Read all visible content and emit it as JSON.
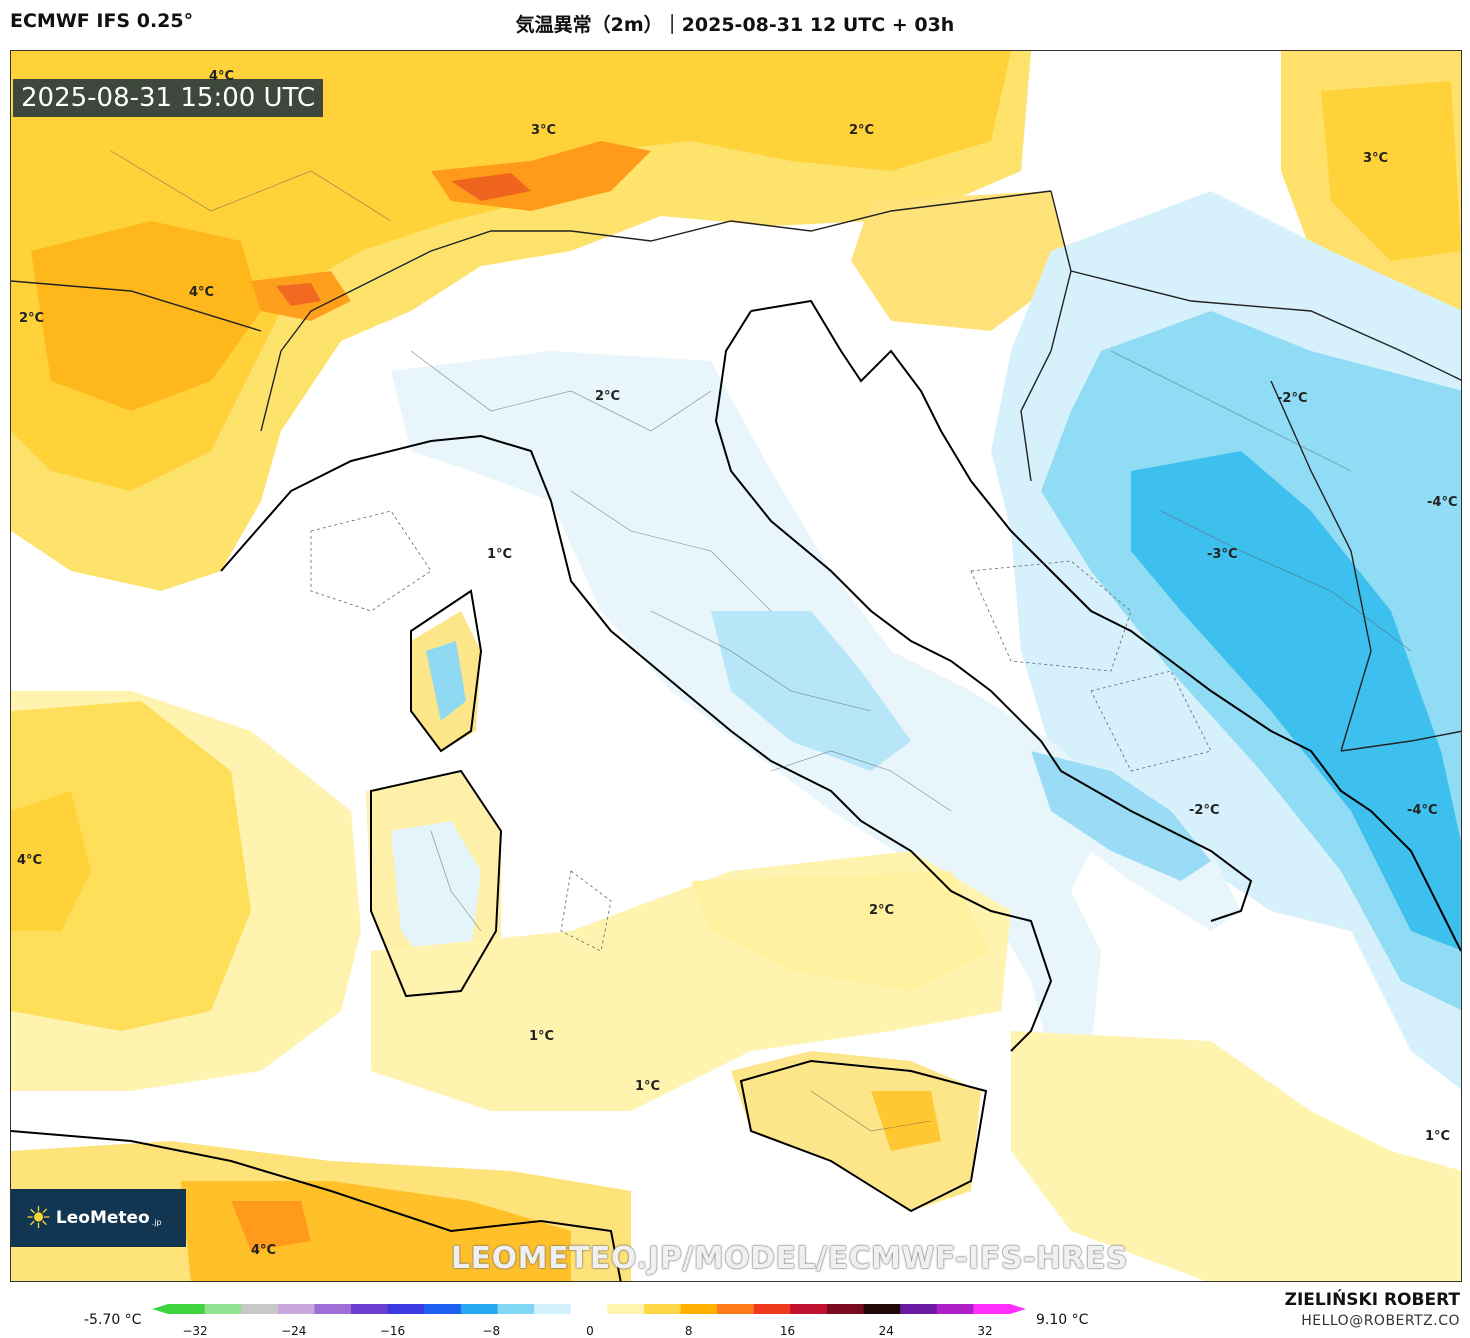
{
  "header": {
    "model": "ECMWF IFS 0.25°",
    "title": "気温異常（2m）｜2025-08-31 12 UTC + 03h"
  },
  "map": {
    "valid_time": "2025-08-31 15:00 UTC",
    "watermark": "LEOMETEO.JP/MODEL/ECMWF-IFS-HRES",
    "logo": {
      "name": "LeoMeteo",
      "suffix": ".jp",
      "icon": "sun-icon"
    },
    "contour_labels": [
      {
        "id": "nw-4c-top",
        "text": "4°C"
      },
      {
        "id": "alps-3c",
        "text": "3°C"
      },
      {
        "id": "austria-2c",
        "text": "2°C"
      },
      {
        "id": "hungary-3c",
        "text": "3°C"
      },
      {
        "id": "france-4c",
        "text": "4°C"
      },
      {
        "id": "france-2c",
        "text": "2°C"
      },
      {
        "id": "po-valley-2c",
        "text": "2°C"
      },
      {
        "id": "balkans-neg2c",
        "text": "-2°C"
      },
      {
        "id": "balkans-neg4c-east",
        "text": "-4°C"
      },
      {
        "id": "ligurian-1c",
        "text": "1°C"
      },
      {
        "id": "dalmatia-neg3c",
        "text": "-3°C"
      },
      {
        "id": "adriatic-neg2c",
        "text": "-2°C"
      },
      {
        "id": "albania-neg4c",
        "text": "-4°C"
      },
      {
        "id": "med-west-4c",
        "text": "4°C"
      },
      {
        "id": "tyrrhenian-2c",
        "text": "2°C"
      },
      {
        "id": "sardinia-south-1c",
        "text": "1°C"
      },
      {
        "id": "sicily-west-1c",
        "text": "1°C"
      },
      {
        "id": "ionian-1c",
        "text": "1°C"
      },
      {
        "id": "africa-4c",
        "text": "4°C"
      }
    ]
  },
  "colorbar": {
    "min_label": "-5.70 °C",
    "max_label": "9.10 °C",
    "ticks": [
      "−32",
      "−24",
      "−16",
      "−8",
      "0",
      "8",
      "16",
      "24",
      "32"
    ],
    "colors": [
      "#3fd33f",
      "#8fe28f",
      "#c8c8c8",
      "#c9a8e0",
      "#9f6fd8",
      "#6a3fd0",
      "#3a3ae0",
      "#2060f0",
      "#25a8f0",
      "#7fd6f5",
      "#d2f0fa",
      "#ffffff",
      "#fff4b0",
      "#ffd84a",
      "#ffb000",
      "#ff7a1a",
      "#f03a20",
      "#c01030",
      "#7a0a20",
      "#200808",
      "#6a1aa0",
      "#b020c8",
      "#ff30ff"
    ]
  },
  "credits": {
    "author": "ZIELIŃSKI ROBERT",
    "email": "HELLO@ROBERTZ.CO"
  }
}
